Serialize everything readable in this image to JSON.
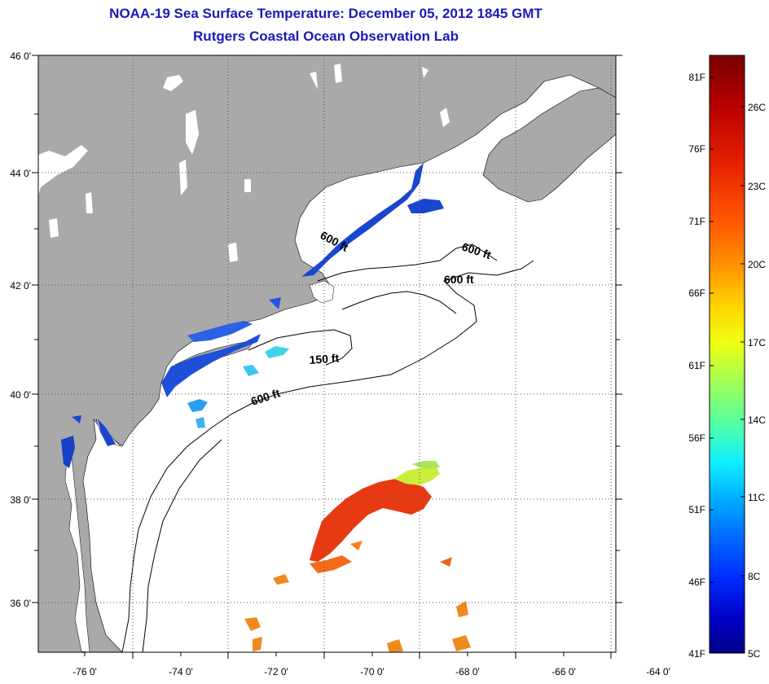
{
  "title": "NOAA-19 Sea Surface Temperature:  December 05, 2012 1845 GMT",
  "subtitle": "Rutgers Coastal Ocean Observation Lab",
  "axes": {
    "lat_labels": [
      "46 0'",
      "44 0'",
      "42 0'",
      "40 0'",
      "38 0'",
      "36 0'"
    ],
    "lon_labels": [
      "-76 0'",
      "-74 0'",
      "-72 0'",
      "-70 0'",
      "-68 0'",
      "-66 0'",
      "-64 0'"
    ]
  },
  "contours": [
    "600 ft",
    "600 ft",
    "600 ft",
    "150 ft",
    "600 ft"
  ],
  "colorbar": {
    "fahrenheit": [
      "81F",
      "76F",
      "71F",
      "66F",
      "61F",
      "56F",
      "51F",
      "46F",
      "41F"
    ],
    "celsius": [
      "26C",
      "23C",
      "20C",
      "17C",
      "14C",
      "11C",
      "8C",
      "5C"
    ],
    "colors": [
      "#7a0000",
      "#b40000",
      "#e62000",
      "#ff5a00",
      "#ff9a00",
      "#ffd400",
      "#f0ff10",
      "#a8ff50",
      "#50ffa8",
      "#10f0ff",
      "#00b0ff",
      "#0070ff",
      "#0030ff",
      "#0000c8",
      "#000088"
    ]
  },
  "colors": {
    "land": "#a9a9a9",
    "title": "#1a1ab8"
  }
}
